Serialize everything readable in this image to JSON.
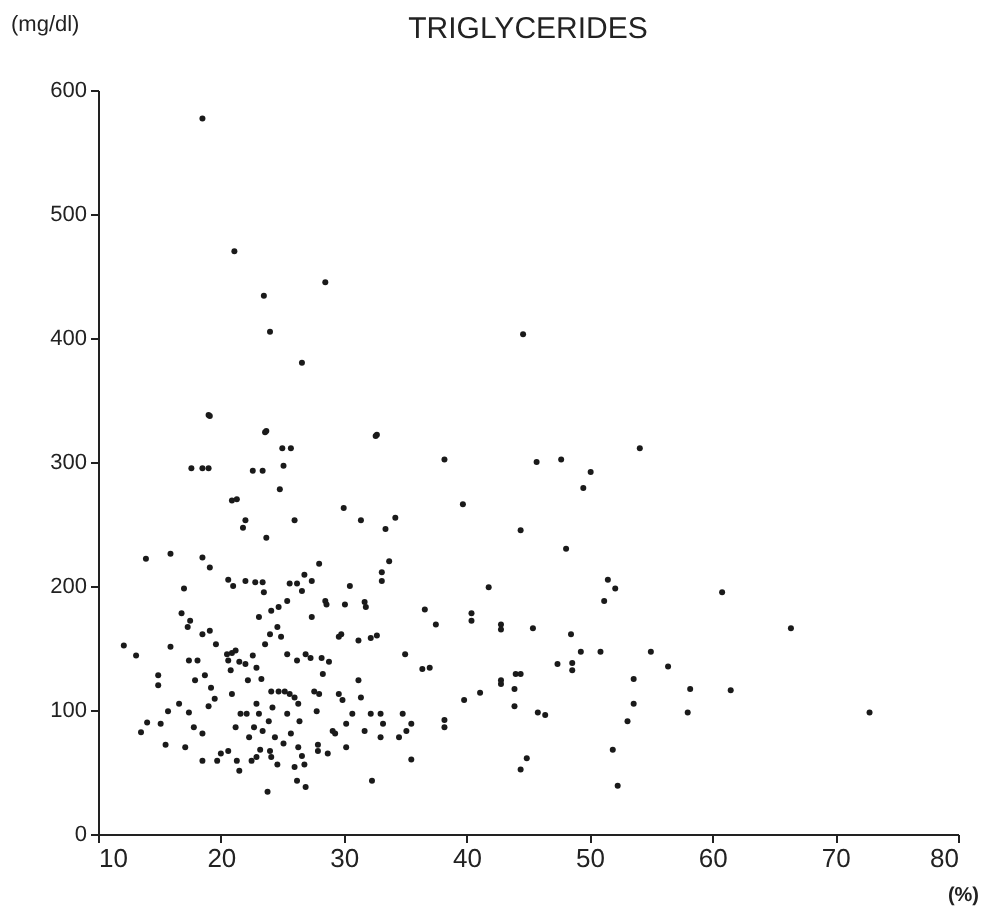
{
  "chart_data": {
    "type": "scatter",
    "title": "TRIGLYCERIDES",
    "xlabel": "(%)",
    "ylabel": "(mg/dl)",
    "xlim": [
      10,
      80
    ],
    "ylim": [
      0,
      600
    ],
    "xticks": [
      10,
      20,
      30,
      40,
      50,
      60,
      70,
      80
    ],
    "yticks": [
      0,
      100,
      200,
      300,
      400,
      500,
      600
    ],
    "marker": "circle",
    "grid": false,
    "series": [
      {
        "color": "#1a1a1a",
        "x": [
          12.1,
          13.1,
          13.9,
          15.9,
          15.9,
          13.5,
          14,
          14.9,
          14.9,
          15.1,
          15.5,
          15.7,
          17,
          16.8,
          17.6,
          18.5,
          19,
          19,
          18.5,
          17.5,
          17.3,
          19.1,
          18.1,
          18.5,
          19.1,
          17.4,
          17.9,
          18.7,
          19.2,
          19.5,
          19,
          18.5,
          17.8,
          17.4,
          16.6,
          17.1,
          18.5,
          19.7,
          20,
          20.9,
          20.8,
          20.6,
          20.9,
          21.2,
          20.5,
          21.5,
          22,
          20.9,
          21.3,
          21.8,
          22,
          23.7,
          22.6,
          23.4,
          23.6,
          25.1,
          25.7,
          24.8,
          26,
          20.6,
          21,
          22,
          22.8,
          23.4,
          23.5,
          24.1,
          24.7,
          25.4,
          25.6,
          26.2,
          26.6,
          26.8,
          27.4,
          28,
          27.4,
          28.5,
          28.6,
          30.1,
          30.5,
          31.7,
          31.8,
          30,
          31.4,
          32.7,
          33.4,
          33.7,
          34.2,
          33.1,
          33.1,
          35,
          35.5,
          38.2,
          39.7,
          41.8,
          36.6,
          37.5,
          36.4,
          37,
          38.2,
          38.2,
          39.8,
          41.1,
          22.2,
          22.9,
          23.3,
          22.9,
          23.1,
          22.1,
          21.6,
          21.2,
          22.7,
          22.3,
          23.4,
          23.9,
          24.2,
          24.7,
          24.1,
          25.2,
          25.6,
          26,
          26.3,
          25.4,
          24.4,
          25.1,
          25.7,
          26.4,
          26.3,
          26.6,
          26,
          26.8,
          26.9,
          26.2,
          24.1,
          24.6,
          22.9,
          23.8,
          21.5,
          21.3,
          20.6,
          22.5,
          24,
          23.2,
          27.6,
          28,
          27.8,
          27.9,
          27.9,
          28.7,
          29.1,
          29.3,
          29.6,
          29.9,
          30.2,
          30.2,
          30.7,
          31.2,
          31.4,
          32.2,
          32.3,
          31.7,
          33,
          33,
          33.2,
          34.8,
          35.1,
          35.5,
          34.5,
          27.3,
          26.9,
          28.2,
          28.3,
          28.8,
          29.6,
          29.8,
          31.2,
          32.2,
          32.7,
          26.2,
          25.4,
          24.9,
          24.6,
          24,
          23.6,
          22.6,
          23.1,
          19.6,
          45.7,
          47.7,
          54.1,
          50.1,
          49.5,
          44.4,
          48.1,
          51.5,
          52.1,
          51.2,
          60.8,
          66.4,
          45.4,
          48.5,
          42.8,
          42.8,
          40.4,
          40.4,
          49.3,
          50.9,
          55,
          47.4,
          48.6,
          48.6,
          56.4,
          58.2,
          61.5,
          53.6,
          53.6,
          53.1,
          58,
          72.8,
          51.9,
          52.3,
          42.8,
          42.8,
          44,
          44.4,
          43.9,
          43.9,
          45.8,
          46.4,
          44.4,
          44.9,
          18.5,
          21.1,
          23.5,
          28.5,
          24,
          26.6,
          19.1,
          23.7,
          32.6,
          25,
          44.6
        ],
        "values": [
          152,
          144,
          222,
          226,
          151,
          82,
          90,
          128,
          120,
          89,
          72,
          99,
          198,
          178,
          295,
          295,
          295,
          338,
          223,
          172,
          167,
          215,
          140,
          161,
          164,
          140,
          124,
          128,
          118,
          109,
          103,
          81,
          86,
          98,
          105,
          70,
          59,
          59,
          65,
          113,
          132,
          140,
          146,
          148,
          145,
          139,
          137,
          269,
          270,
          247,
          253,
          239,
          293,
          293,
          324,
          297,
          311,
          278,
          253,
          205,
          200,
          204,
          203,
          203,
          195,
          180,
          183,
          188,
          202,
          202,
          196,
          209,
          204,
          218,
          175,
          188,
          185,
          185,
          200,
          187,
          183,
          263,
          253,
          322,
          246,
          220,
          255,
          211,
          204,
          145,
          60,
          302,
          266,
          199,
          181,
          169,
          133,
          134,
          92,
          86,
          108,
          114,
          124,
          134,
          125,
          105,
          97,
          97,
          97,
          86,
          86,
          78,
          83,
          91,
          102,
          115,
          115,
          115,
          113,
          110,
          105,
          97,
          78,
          73,
          81,
          91,
          70,
          63,
          54,
          56,
          38,
          43,
          62,
          56,
          62,
          34,
          51,
          59,
          67,
          59,
          67,
          68,
          115,
          113,
          99,
          72,
          67,
          65,
          83,
          81,
          113,
          108,
          89,
          70,
          97,
          124,
          110,
          97,
          43,
          83,
          97,
          78,
          89,
          97,
          83,
          89,
          78,
          142,
          145,
          142,
          129,
          139,
          159,
          161,
          156,
          158,
          160,
          140,
          145,
          159,
          167,
          161,
          153,
          144,
          175,
          153,
          300,
          302,
          311,
          292,
          279,
          245,
          230,
          205,
          198,
          188,
          195,
          166,
          166,
          161,
          169,
          165,
          178,
          172,
          147,
          147,
          147,
          137,
          138,
          132,
          135,
          117,
          116,
          125,
          105,
          91,
          98,
          98,
          68,
          39,
          124,
          121,
          129,
          129,
          117,
          103,
          98,
          96,
          52,
          61,
          577,
          470,
          434,
          445,
          405,
          380,
          337,
          325,
          321,
          311,
          403
        ]
      }
    ]
  }
}
